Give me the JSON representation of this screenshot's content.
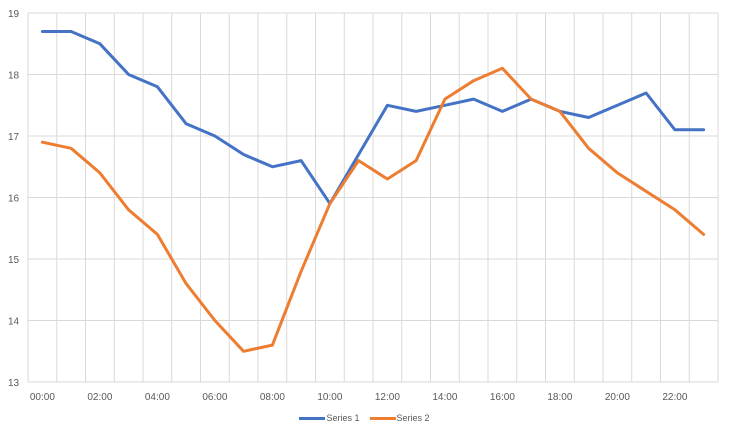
{
  "chart_data": {
    "type": "line",
    "title": "",
    "xlabel": "",
    "ylabel": "",
    "ylim": [
      13,
      19
    ],
    "yticks": [
      13,
      14,
      15,
      16,
      17,
      18,
      19
    ],
    "grid": true,
    "legend_position": "bottom",
    "categories": [
      "00:00",
      "01:00",
      "02:00",
      "03:00",
      "04:00",
      "05:00",
      "06:00",
      "07:00",
      "08:00",
      "09:00",
      "10:00",
      "11:00",
      "12:00",
      "13:00",
      "14:00",
      "15:00",
      "16:00",
      "17:00",
      "18:00",
      "19:00",
      "20:00",
      "21:00",
      "22:00",
      "23:00"
    ],
    "xtick_labels": [
      "00:00",
      "02:00",
      "04:00",
      "06:00",
      "08:00",
      "10:00",
      "12:00",
      "14:00",
      "16:00",
      "18:00",
      "20:00",
      "22:00"
    ],
    "series": [
      {
        "name": "Series 1",
        "color": "#4472C4",
        "values": [
          18.7,
          18.7,
          18.5,
          18.0,
          17.8,
          17.2,
          17.0,
          16.7,
          16.5,
          16.6,
          15.9,
          16.7,
          17.5,
          17.4,
          17.5,
          17.6,
          17.4,
          17.6,
          17.4,
          17.3,
          17.5,
          17.7,
          17.1,
          17.1
        ]
      },
      {
        "name": "Series 2",
        "color": "#ED7D31",
        "values": [
          16.9,
          16.8,
          16.4,
          15.8,
          15.4,
          14.6,
          14.0,
          13.5,
          13.6,
          14.8,
          15.9,
          16.6,
          16.3,
          16.6,
          17.6,
          17.9,
          18.1,
          17.6,
          17.4,
          16.8,
          16.4,
          16.1,
          15.8,
          15.4
        ]
      }
    ]
  },
  "legend": {
    "items": [
      {
        "label": "Series 1",
        "color": "#4472C4"
      },
      {
        "label": "Series 2",
        "color": "#ED7D31"
      }
    ]
  }
}
